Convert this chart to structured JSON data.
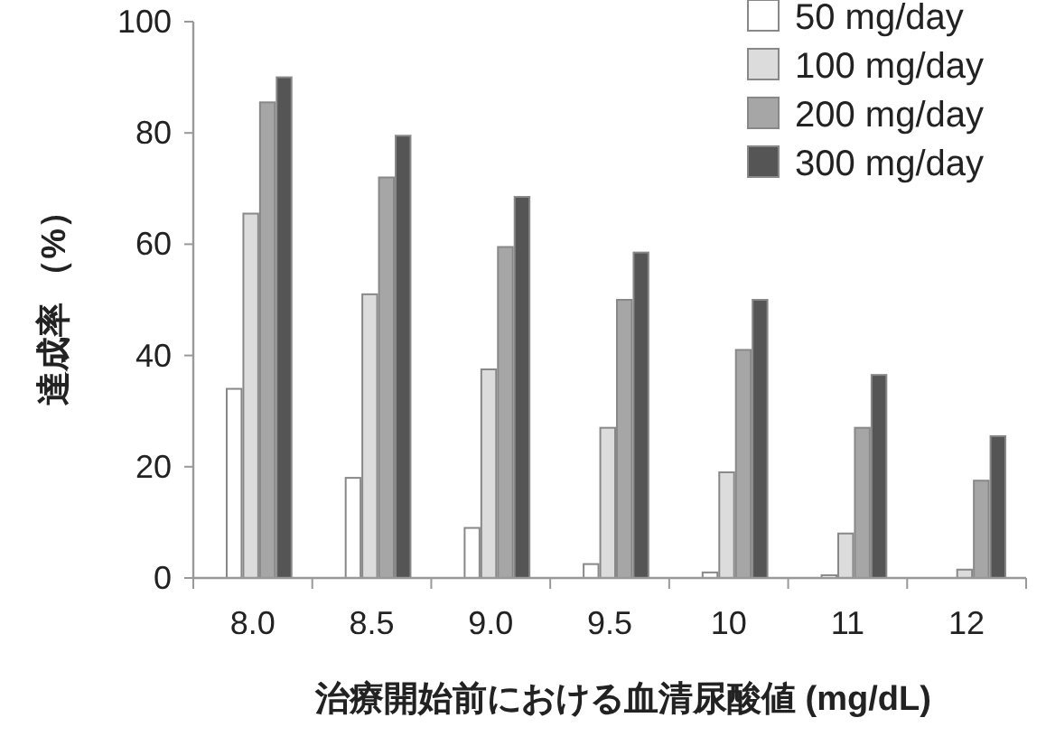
{
  "chart_data": {
    "type": "bar",
    "xlabel": "治療開始前における血清尿酸値 (mg/dL)",
    "ylabel": "達成率 （%）",
    "categories": [
      "8.0",
      "8.5",
      "9.0",
      "9.5",
      "10",
      "11",
      "12"
    ],
    "series": [
      {
        "name": "50 mg/day",
        "color": "#ffffff",
        "values": [
          34,
          18,
          9,
          2.5,
          1,
          0.5,
          0
        ]
      },
      {
        "name": "100 mg/day",
        "color": "#dcdcdc",
        "values": [
          65.5,
          51,
          37.5,
          27,
          19,
          8,
          1.5
        ]
      },
      {
        "name": "200 mg/day",
        "color": "#a6a6a6",
        "values": [
          85.5,
          72,
          59.5,
          50,
          41,
          27,
          17.5
        ]
      },
      {
        "name": "300 mg/day",
        "color": "#555555",
        "values": [
          90,
          79.5,
          68.5,
          58.5,
          50,
          36.5,
          25.5
        ]
      }
    ],
    "ylim": [
      0,
      100
    ],
    "yticks": [
      0,
      20,
      40,
      60,
      80,
      100
    ],
    "grid": false,
    "legend": "top right"
  }
}
